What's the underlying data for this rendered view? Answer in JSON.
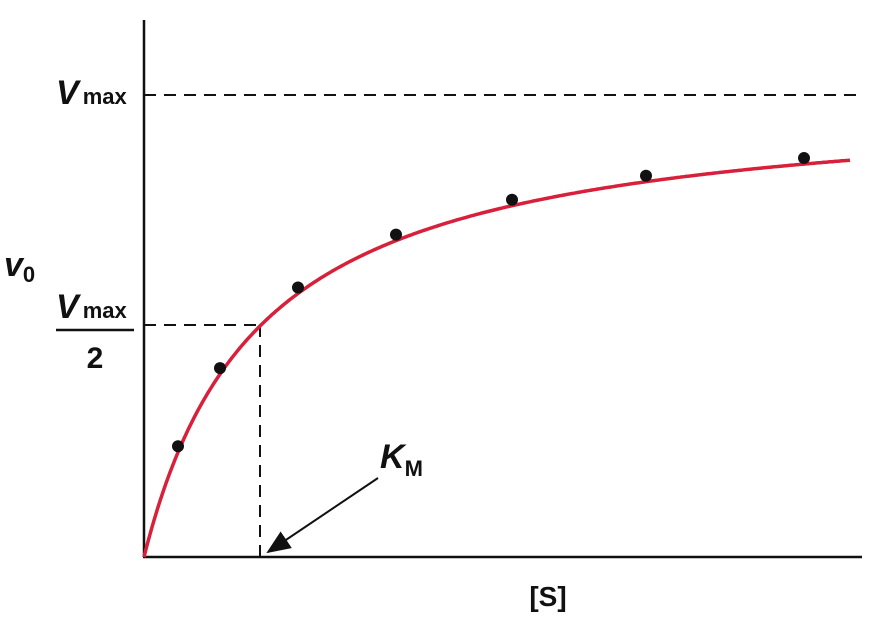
{
  "labels": {
    "vmax": {
      "main": "V",
      "sub": "max"
    },
    "v0": {
      "main": "v",
      "sub": "0"
    },
    "half_vmax": {
      "main": "V",
      "sub": "max",
      "denominator": "2"
    },
    "km": {
      "main": "K",
      "sub": "M"
    },
    "x_axis": "[S]"
  }
}
